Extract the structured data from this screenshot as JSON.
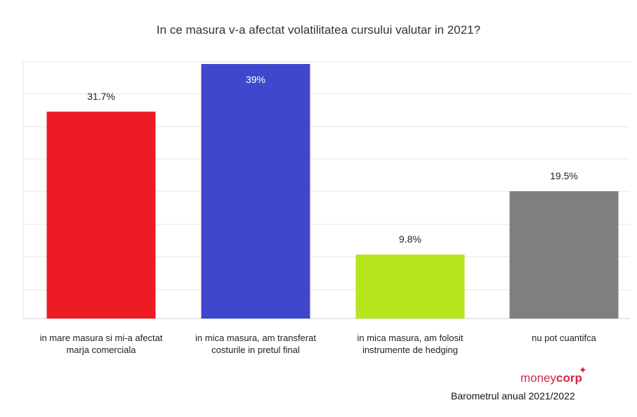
{
  "chart_data": {
    "type": "bar",
    "title": "In ce masura v-a afectat volatilitatea cursului valutar in 2021?",
    "categories": [
      "in mare masura si mi-a afectat marja comerciala",
      "in mica masura, am transferat costurile in pretul final",
      "in mica masura, am folosit instrumente de hedging",
      "nu pot cuantifca"
    ],
    "values": [
      31.7,
      39,
      9.8,
      19.5
    ],
    "value_labels": [
      "31.7%",
      "39%",
      "9.8%",
      "19.5%"
    ],
    "colors": [
      "#ed1c24",
      "#3f48cc",
      "#b5e61d",
      "#7f7f7f"
    ],
    "ylim": [
      0,
      39
    ],
    "grid": true,
    "xlabel": "",
    "ylabel": ""
  },
  "branding": {
    "logo_part1": "money",
    "logo_part2": "corp",
    "source": "Barometrul anual 2021/2022"
  }
}
